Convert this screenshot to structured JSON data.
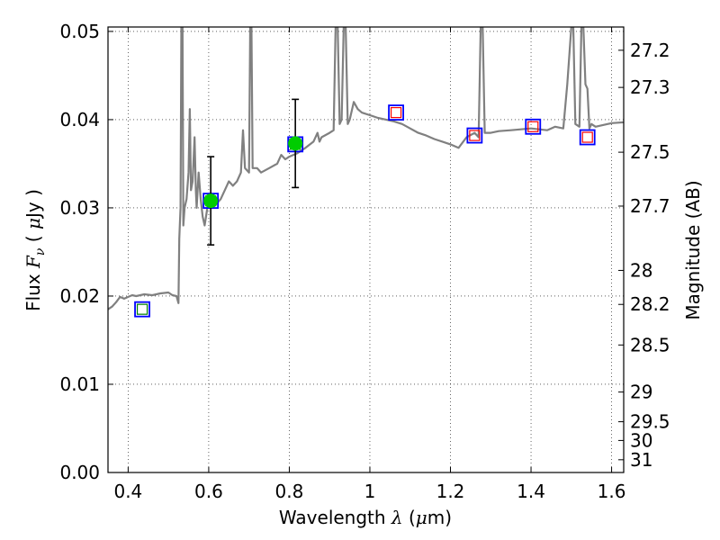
{
  "chart_data": {
    "type": "line",
    "xlabel_prefix": "Wavelength  ",
    "xlabel_symbol": "λ",
    "xlabel_unit_open": " (",
    "xlabel_unit_mu": "μ",
    "xlabel_unit_rest": "m)",
    "ylabel_prefix": "Flux  ",
    "ylabel_symbol": "F",
    "ylabel_subscript": "ν",
    "ylabel_unit_open": "  ( ",
    "ylabel_unit_mu": "μ",
    "ylabel_unit_rest": "Jy )",
    "ylabel_right": "Magnitude (AB)",
    "xlim": [
      0.35,
      1.63
    ],
    "ylim": [
      0.0,
      0.0505
    ],
    "grid": true,
    "x_ticks": [
      {
        "value": 0.4,
        "label": "0.4"
      },
      {
        "value": 0.6,
        "label": "0.6"
      },
      {
        "value": 0.8,
        "label": "0.8"
      },
      {
        "value": 1.0,
        "label": "1"
      },
      {
        "value": 1.2,
        "label": "1.2"
      },
      {
        "value": 1.4,
        "label": "1.4"
      },
      {
        "value": 1.6,
        "label": "1.6"
      }
    ],
    "y_ticks": [
      {
        "value": 0.0,
        "label": "0.00"
      },
      {
        "value": 0.01,
        "label": "0.01"
      },
      {
        "value": 0.02,
        "label": "0.02"
      },
      {
        "value": 0.03,
        "label": "0.03"
      },
      {
        "value": 0.04,
        "label": "0.04"
      },
      {
        "value": 0.05,
        "label": "0.05"
      }
    ],
    "mag_ticks": [
      {
        "label": "27.2"
      },
      {
        "label": "27.3"
      },
      {
        "label": "27.5"
      },
      {
        "label": "27.7"
      },
      {
        "label": "28"
      },
      {
        "label": "28.2"
      },
      {
        "label": "28.5"
      },
      {
        "label": "29"
      },
      {
        "label": "29.5"
      },
      {
        "label": "30"
      },
      {
        "label": "31"
      }
    ],
    "series": [
      {
        "name": "model spectrum",
        "color": "#808080",
        "kind": "line",
        "points": [
          [
            0.35,
            0.0185
          ],
          [
            0.36,
            0.0188
          ],
          [
            0.37,
            0.0193
          ],
          [
            0.38,
            0.0199
          ],
          [
            0.39,
            0.0197
          ],
          [
            0.4,
            0.0199
          ],
          [
            0.41,
            0.0201
          ],
          [
            0.42,
            0.02
          ],
          [
            0.44,
            0.0202
          ],
          [
            0.46,
            0.0201
          ],
          [
            0.48,
            0.0203
          ],
          [
            0.5,
            0.0204
          ],
          [
            0.51,
            0.0201
          ],
          [
            0.52,
            0.02
          ],
          [
            0.525,
            0.0192
          ],
          [
            0.527,
            0.0265
          ],
          [
            0.53,
            0.03
          ],
          [
            0.532,
            0.0505
          ],
          [
            0.535,
            0.0505
          ],
          [
            0.537,
            0.028
          ],
          [
            0.54,
            0.03
          ],
          [
            0.545,
            0.031
          ],
          [
            0.55,
            0.034
          ],
          [
            0.553,
            0.0412
          ],
          [
            0.556,
            0.032
          ],
          [
            0.56,
            0.033
          ],
          [
            0.565,
            0.038
          ],
          [
            0.568,
            0.032
          ],
          [
            0.57,
            0.03
          ],
          [
            0.575,
            0.034
          ],
          [
            0.58,
            0.031
          ],
          [
            0.585,
            0.029
          ],
          [
            0.59,
            0.028
          ],
          [
            0.6,
            0.031
          ],
          [
            0.61,
            0.03
          ],
          [
            0.62,
            0.0305
          ],
          [
            0.63,
            0.031
          ],
          [
            0.64,
            0.032
          ],
          [
            0.65,
            0.033
          ],
          [
            0.66,
            0.0325
          ],
          [
            0.67,
            0.033
          ],
          [
            0.68,
            0.034
          ],
          [
            0.685,
            0.0388
          ],
          [
            0.69,
            0.0345
          ],
          [
            0.7,
            0.034
          ],
          [
            0.703,
            0.0505
          ],
          [
            0.706,
            0.0505
          ],
          [
            0.709,
            0.0345
          ],
          [
            0.72,
            0.0345
          ],
          [
            0.73,
            0.034
          ],
          [
            0.75,
            0.0345
          ],
          [
            0.77,
            0.035
          ],
          [
            0.78,
            0.036
          ],
          [
            0.79,
            0.0355
          ],
          [
            0.8,
            0.0358
          ],
          [
            0.82,
            0.0362
          ],
          [
            0.84,
            0.0368
          ],
          [
            0.86,
            0.0375
          ],
          [
            0.87,
            0.0385
          ],
          [
            0.875,
            0.0375
          ],
          [
            0.88,
            0.038
          ],
          [
            0.9,
            0.0385
          ],
          [
            0.91,
            0.0388
          ],
          [
            0.915,
            0.0505
          ],
          [
            0.92,
            0.0505
          ],
          [
            0.925,
            0.0395
          ],
          [
            0.93,
            0.04
          ],
          [
            0.935,
            0.0505
          ],
          [
            0.94,
            0.0505
          ],
          [
            0.945,
            0.0395
          ],
          [
            0.95,
            0.04
          ],
          [
            0.96,
            0.042
          ],
          [
            0.97,
            0.0412
          ],
          [
            0.98,
            0.0408
          ],
          [
            1.0,
            0.0405
          ],
          [
            1.02,
            0.0402
          ],
          [
            1.04,
            0.04
          ],
          [
            1.06,
            0.0398
          ],
          [
            1.08,
            0.0395
          ],
          [
            1.1,
            0.039
          ],
          [
            1.12,
            0.0385
          ],
          [
            1.14,
            0.0382
          ],
          [
            1.16,
            0.0378
          ],
          [
            1.18,
            0.0375
          ],
          [
            1.2,
            0.0372
          ],
          [
            1.22,
            0.0368
          ],
          [
            1.24,
            0.038
          ],
          [
            1.26,
            0.0385
          ],
          [
            1.27,
            0.038
          ],
          [
            1.275,
            0.0505
          ],
          [
            1.28,
            0.0505
          ],
          [
            1.285,
            0.0385
          ],
          [
            1.3,
            0.0385
          ],
          [
            1.32,
            0.0387
          ],
          [
            1.35,
            0.0388
          ],
          [
            1.4,
            0.039
          ],
          [
            1.44,
            0.0388
          ],
          [
            1.46,
            0.0392
          ],
          [
            1.48,
            0.039
          ],
          [
            1.49,
            0.044
          ],
          [
            1.5,
            0.0505
          ],
          [
            1.505,
            0.0505
          ],
          [
            1.51,
            0.0395
          ],
          [
            1.52,
            0.0392
          ],
          [
            1.525,
            0.0505
          ],
          [
            1.53,
            0.0505
          ],
          [
            1.535,
            0.044
          ],
          [
            1.54,
            0.0435
          ],
          [
            1.545,
            0.039
          ],
          [
            1.55,
            0.0395
          ],
          [
            1.56,
            0.0392
          ],
          [
            1.58,
            0.0394
          ],
          [
            1.6,
            0.0396
          ],
          [
            1.63,
            0.0397
          ]
        ]
      },
      {
        "name": "photometry (blue squares)",
        "color": "#0000ff",
        "kind": "square",
        "points": [
          [
            0.435,
            0.0185
          ],
          [
            0.605,
            0.0308
          ],
          [
            0.815,
            0.0372
          ],
          [
            1.065,
            0.0408
          ],
          [
            1.26,
            0.0382
          ],
          [
            1.405,
            0.0392
          ],
          [
            1.54,
            0.038
          ]
        ]
      },
      {
        "name": "model photometry (green squares)",
        "color": "#008000",
        "kind": "small-square",
        "points": [
          [
            0.435,
            0.0185
          ],
          [
            0.605,
            0.0308
          ],
          [
            0.815,
            0.0372
          ]
        ]
      },
      {
        "name": "model photometry (red squares)",
        "color": "#ff0000",
        "kind": "small-square",
        "points": [
          [
            1.065,
            0.0408
          ],
          [
            1.26,
            0.0382
          ],
          [
            1.405,
            0.0392
          ],
          [
            1.54,
            0.038
          ]
        ]
      },
      {
        "name": "detections",
        "color": "#00cc00",
        "kind": "errorbar",
        "points": [
          {
            "x": 0.605,
            "y": 0.0308,
            "ylow": 0.0258,
            "yhigh": 0.0358
          },
          {
            "x": 0.815,
            "y": 0.0373,
            "ylow": 0.0323,
            "yhigh": 0.0423
          }
        ]
      }
    ]
  }
}
